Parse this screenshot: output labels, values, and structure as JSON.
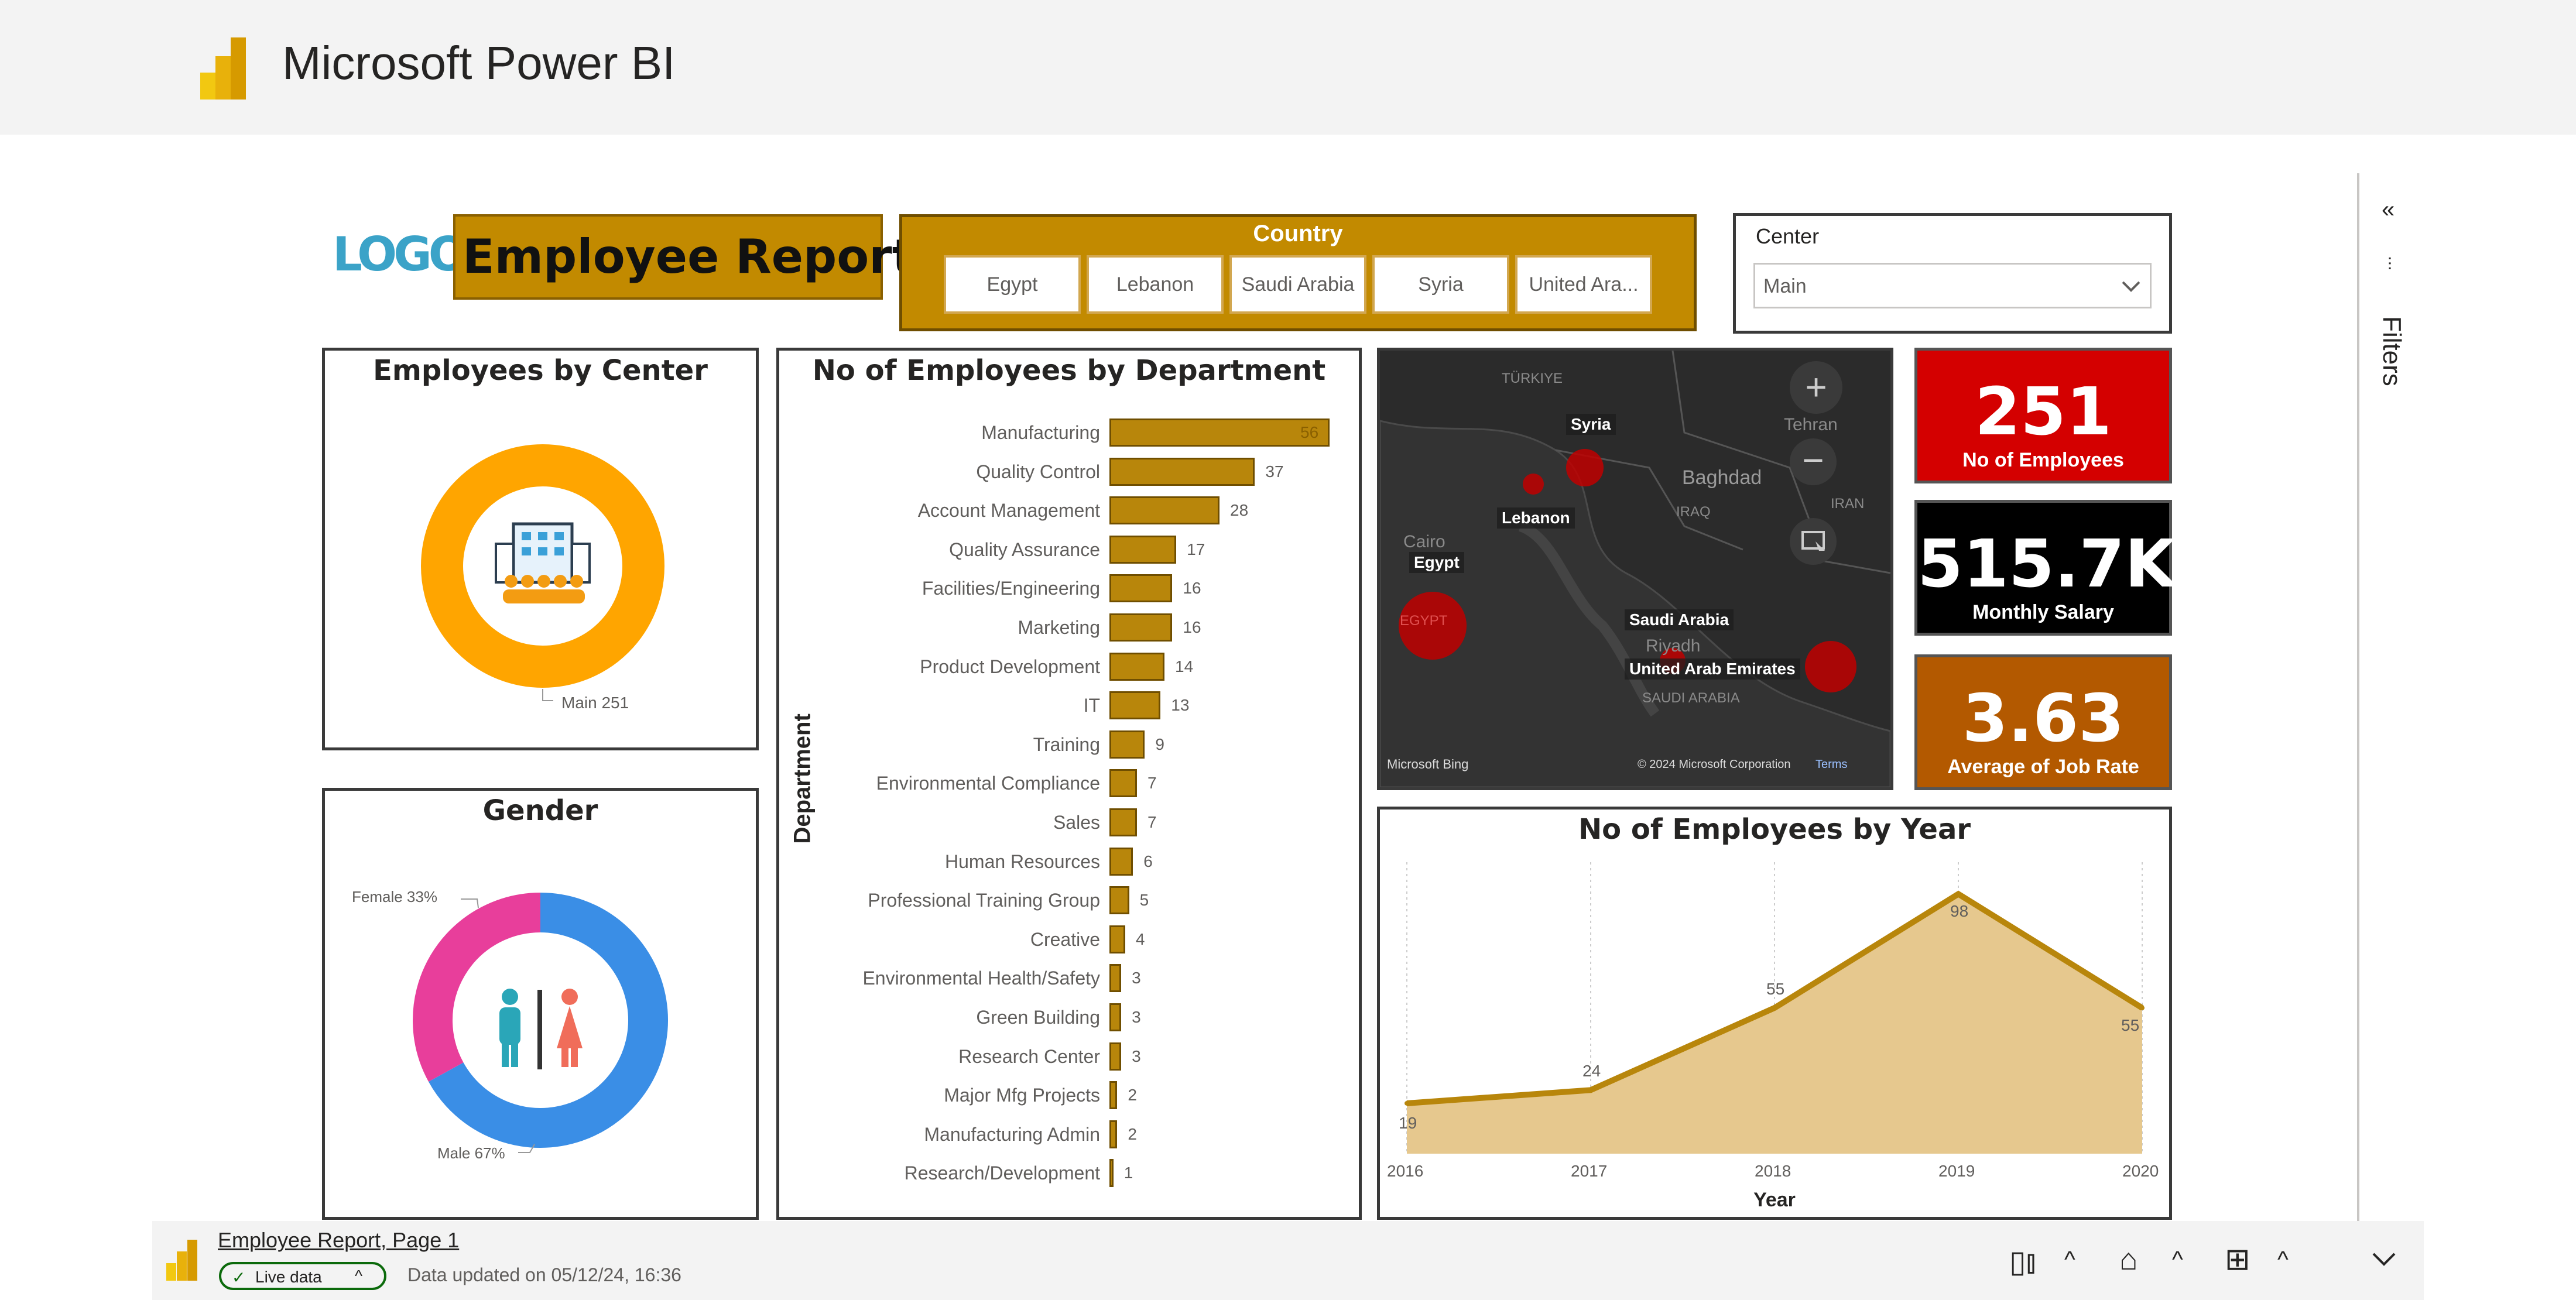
{
  "app": {
    "title": "Microsoft Power BI"
  },
  "report": {
    "logo_text": "LOGO",
    "title": "Employee Report",
    "country_slicer": {
      "title": "Country",
      "options": [
        "Egypt",
        "Lebanon",
        "Saudi Arabia",
        "Syria",
        "United Ara..."
      ]
    },
    "center_slicer": {
      "title": "Center",
      "value": "Main"
    }
  },
  "employees_by_center": {
    "title": "Employees by Center",
    "label": "Main 251",
    "value": 251
  },
  "gender": {
    "title": "Gender",
    "female_label": "Female 33%",
    "male_label": "Male 67%",
    "female_pct": 33,
    "male_pct": 67
  },
  "kpis": [
    {
      "value": "251",
      "label": "No of Employees",
      "color": "#d40000"
    },
    {
      "value": "515.7K",
      "label": "Monthly Salary",
      "color": "#000000"
    },
    {
      "value": "3.63",
      "label": "Average of Job Rate",
      "color": "#b35900"
    }
  ],
  "map": {
    "labels": {
      "syria": "Syria",
      "lebanon": "Lebanon",
      "egypt": "Egypt",
      "saudi": "Saudi Arabia",
      "uae": "United Arab Emirates"
    },
    "faint": {
      "tehran": "Tehran",
      "baghdad": "Baghdad",
      "cairo": "Cairo",
      "riyadh": "Riyadh",
      "saudi_arabia": "SAUDI ARABIA",
      "iran": "IRAN",
      "iraq": "IRAQ",
      "turkiye": "TÜRKIYE",
      "egypt": "EGYPT"
    },
    "attribution": "© 2024 Microsoft Corporation",
    "terms": "Terms",
    "brand": "Microsoft Bing"
  },
  "chart_data": [
    {
      "type": "bar",
      "title": "No of Employees by Department",
      "ylabel": "Department",
      "categories": [
        "Manufacturing",
        "Quality Control",
        "Account Management",
        "Quality Assurance",
        "Facilities/Engineering",
        "Marketing",
        "Product Development",
        "IT",
        "Training",
        "Environmental Compliance",
        "Sales",
        "Human Resources",
        "Professional Training Group",
        "Creative",
        "Environmental Health/Safety",
        "Green Building",
        "Research Center",
        "Major Mfg Projects",
        "Manufacturing Admin",
        "Research/Development"
      ],
      "values": [
        56,
        37,
        28,
        17,
        16,
        16,
        14,
        13,
        9,
        7,
        7,
        6,
        5,
        4,
        3,
        3,
        3,
        2,
        2,
        1
      ]
    },
    {
      "type": "area",
      "title": "No of Employees by Year",
      "xlabel": "Year",
      "x": [
        "2016",
        "2017",
        "2018",
        "2019",
        "2020"
      ],
      "values": [
        19,
        24,
        55,
        98,
        55
      ]
    }
  ],
  "footer": {
    "page_name": "Employee Report, Page 1",
    "live_label": "Live data",
    "updated_text": "Data updated on 05/12/24, 16:36"
  },
  "filters_pane": {
    "label": "Filters"
  },
  "colors": {
    "accent": "#b8860b",
    "gold_header": "#c28a00",
    "female": "#e83e9b",
    "male": "#3a8ee6",
    "center_ring": "#ffa500"
  }
}
